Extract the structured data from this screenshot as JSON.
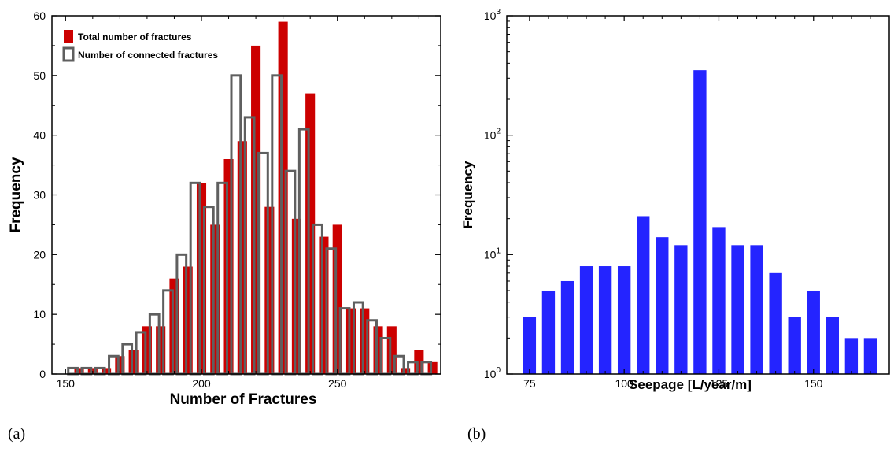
{
  "panels": {
    "a_label": "(a)",
    "b_label": "(b)"
  },
  "chart_data": [
    {
      "type": "bar",
      "title": "",
      "xlabel": "Number of Fractures",
      "ylabel": "Frequency",
      "xlim": [
        145,
        288
      ],
      "ylim": [
        0,
        60
      ],
      "bin_width": 5,
      "xticks": [
        150,
        200,
        250
      ],
      "yticks": [
        0,
        10,
        20,
        30,
        40,
        50,
        60
      ],
      "grid": false,
      "legend_position": "top-left",
      "x": [
        155,
        160,
        165,
        170,
        175,
        180,
        185,
        190,
        195,
        200,
        205,
        210,
        215,
        220,
        225,
        230,
        235,
        240,
        245,
        250,
        255,
        260,
        265,
        270,
        275,
        280,
        285
      ],
      "series": [
        {
          "name": "Total number of fractures",
          "style": "filled",
          "color": "#cc0000",
          "values": [
            1,
            1,
            1,
            3,
            4,
            8,
            8,
            16,
            18,
            32,
            25,
            36,
            39,
            55,
            28,
            59,
            26,
            47,
            23,
            25,
            11,
            11,
            8,
            8,
            1,
            4,
            2
          ]
        },
        {
          "name": "Number of connected fractures",
          "style": "outline",
          "color": "#5f5f5f",
          "values": [
            1,
            1,
            1,
            3,
            5,
            7,
            10,
            14,
            20,
            32,
            28,
            32,
            50,
            43,
            37,
            50,
            34,
            41,
            25,
            21,
            11,
            12,
            9,
            6,
            3,
            2,
            2
          ]
        }
      ]
    },
    {
      "type": "bar",
      "title": "",
      "xlabel": "Seepage [L/year/m]",
      "ylabel": "Frequency",
      "yscale": "log",
      "ylim": [
        1,
        1000
      ],
      "xlim": [
        69,
        170
      ],
      "xticks": [
        75,
        100,
        125,
        150
      ],
      "ytick_exponents": [
        0,
        1,
        2,
        3
      ],
      "grid": false,
      "x": [
        75,
        80,
        85,
        90,
        95,
        100,
        105,
        110,
        115,
        120,
        125,
        130,
        135,
        140,
        145,
        150,
        155,
        160,
        165
      ],
      "series": [
        {
          "style": "filled",
          "color": "#2424ff",
          "values": [
            3,
            5,
            6,
            8,
            8,
            8,
            21,
            14,
            12,
            350,
            17,
            12,
            12,
            7,
            3,
            5,
            3,
            2,
            2
          ]
        }
      ]
    }
  ]
}
